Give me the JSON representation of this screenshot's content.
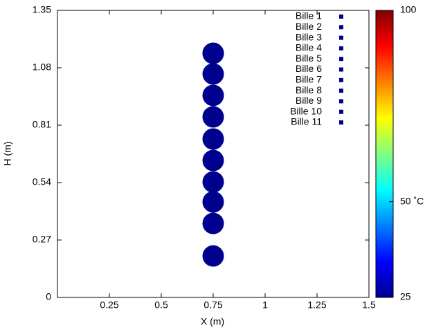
{
  "chart_data": {
    "type": "scatter",
    "xlabel": "X (m)",
    "ylabel": "H (m)",
    "xlim": [
      0,
      1.5
    ],
    "xticks": [
      0.25,
      0.5,
      0.75,
      1,
      1.25,
      1.5
    ],
    "ylim": [
      0,
      1.35
    ],
    "yticks": [
      0,
      0.27,
      0.54,
      0.81,
      1.08,
      1.35
    ],
    "legend": "top-right",
    "colorbar": {
      "clim": [
        25,
        100
      ],
      "cticks": [
        25,
        {
          "value": 50,
          "label": "50 ˚C"
        },
        100
      ]
    },
    "series": [
      {
        "name": "Bille 1",
        "color": "#00008f",
        "x": [
          0.75
        ],
        "values": [
          0.195
        ]
      },
      {
        "name": "Bille 2",
        "color": "#00008f",
        "x": [
          0.75
        ],
        "values": [
          0.348
        ]
      },
      {
        "name": "Bille 3",
        "color": "#00008f",
        "x": [
          0.75
        ],
        "values": [
          0.449
        ]
      },
      {
        "name": "Bille 4",
        "color": "#00008f",
        "x": [
          0.75
        ],
        "values": [
          0.543
        ]
      },
      {
        "name": "Bille 5",
        "color": "#00008f",
        "x": [
          0.75
        ],
        "values": [
          0.644
        ]
      },
      {
        "name": "Bille 6",
        "color": "#00008f",
        "x": [
          0.75
        ],
        "values": [
          0.745
        ]
      },
      {
        "name": "Bille 7",
        "color": "#00008f",
        "x": [
          0.75
        ],
        "values": [
          0.849
        ]
      },
      {
        "name": "Bille 8",
        "color": "#00008f",
        "x": [
          0.75
        ],
        "values": [
          0.95
        ]
      },
      {
        "name": "Bille 9",
        "color": "#00008f",
        "x": [
          0.75
        ],
        "values": [
          1.051
        ]
      },
      {
        "name": "Bille 10",
        "color": "#00008f",
        "x": [
          0.75
        ],
        "values": [
          1.148
        ]
      },
      {
        "name": "Bille 11",
        "color": "#00008f",
        "x": [
          0.75
        ],
        "values": [
          1.148
        ]
      }
    ]
  }
}
